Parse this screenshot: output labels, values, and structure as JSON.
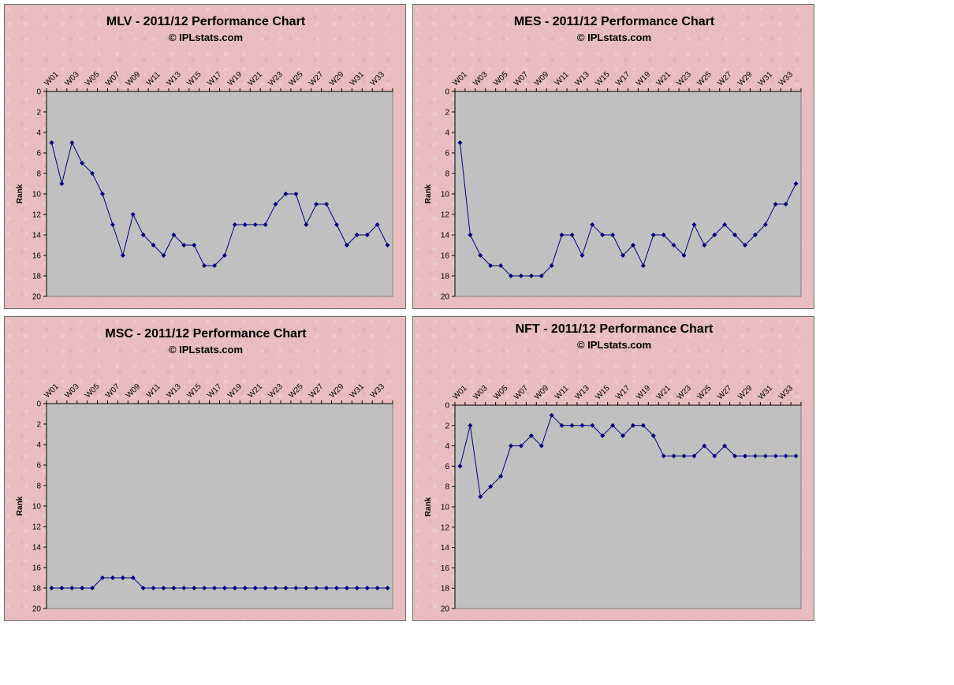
{
  "chart_data": [
    {
      "type": "line",
      "title": "MLV - 2011/12 Performance Chart",
      "subtitle": "© IPLstats.com",
      "ylabel": "Rank",
      "xlabel": "",
      "ylim": [
        0,
        20
      ],
      "y_inverted": true,
      "yticks": [
        "0",
        "2",
        "4",
        "6",
        "8",
        "10",
        "12",
        "14",
        "16",
        "18",
        "20"
      ],
      "x_tick_labels": [
        "W01",
        "W03",
        "W05",
        "W07",
        "W09",
        "W11",
        "W13",
        "W15",
        "W17",
        "W19",
        "W21",
        "W23",
        "W25",
        "W27",
        "W29",
        "W31",
        "W33"
      ],
      "x": [
        "W01",
        "W02",
        "W03",
        "W04",
        "W05",
        "W06",
        "W07",
        "W08",
        "W09",
        "W10",
        "W11",
        "W12",
        "W13",
        "W14",
        "W15",
        "W16",
        "W17",
        "W18",
        "W19",
        "W20",
        "W21",
        "W22",
        "W23",
        "W24",
        "W25",
        "W26",
        "W27",
        "W28",
        "W29",
        "W30",
        "W31",
        "W32",
        "W33",
        "W34"
      ],
      "values": [
        5,
        9,
        5,
        7,
        8,
        10,
        13,
        16,
        12,
        14,
        15,
        16,
        14,
        15,
        15,
        17,
        17,
        16,
        13,
        13,
        13,
        13,
        11,
        10,
        10,
        13,
        11,
        11,
        13,
        15,
        14,
        14,
        13,
        15
      ],
      "line_color": "#000080",
      "plot_background": "#c0c0c0",
      "grid": false
    },
    {
      "type": "line",
      "title": "MES - 2011/12 Performance Chart",
      "subtitle": "© IPLstats.com",
      "ylabel": "Rank",
      "xlabel": "",
      "ylim": [
        0,
        20
      ],
      "y_inverted": true,
      "yticks": [
        "0",
        "2",
        "4",
        "6",
        "8",
        "10",
        "12",
        "14",
        "16",
        "18",
        "20"
      ],
      "x_tick_labels": [
        "W01",
        "W03",
        "W05",
        "W07",
        "W09",
        "W11",
        "W13",
        "W15",
        "W17",
        "W19",
        "W21",
        "W23",
        "W25",
        "W27",
        "W29",
        "W31",
        "W33"
      ],
      "x": [
        "W01",
        "W02",
        "W03",
        "W04",
        "W05",
        "W06",
        "W07",
        "W08",
        "W09",
        "W10",
        "W11",
        "W12",
        "W13",
        "W14",
        "W15",
        "W16",
        "W17",
        "W18",
        "W19",
        "W20",
        "W21",
        "W22",
        "W23",
        "W24",
        "W25",
        "W26",
        "W27",
        "W28",
        "W29",
        "W30",
        "W31",
        "W32",
        "W33",
        "W34"
      ],
      "values": [
        5,
        14,
        16,
        17,
        17,
        18,
        18,
        18,
        18,
        17,
        14,
        14,
        16,
        13,
        14,
        14,
        16,
        15,
        17,
        14,
        14,
        15,
        16,
        13,
        15,
        14,
        13,
        14,
        15,
        14,
        13,
        11,
        11,
        9
      ],
      "line_color": "#000080",
      "plot_background": "#c0c0c0",
      "grid": false
    },
    {
      "type": "line",
      "title": "MSC - 2011/12 Performance Chart",
      "subtitle": "© IPLstats.com",
      "ylabel": "Rank",
      "xlabel": "",
      "ylim": [
        0,
        20
      ],
      "y_inverted": true,
      "yticks": [
        "0",
        "2",
        "4",
        "6",
        "8",
        "10",
        "12",
        "14",
        "16",
        "18",
        "20"
      ],
      "x_tick_labels": [
        "W01",
        "W03",
        "W05",
        "W07",
        "W09",
        "W11",
        "W13",
        "W15",
        "W17",
        "W19",
        "W21",
        "W23",
        "W25",
        "W27",
        "W29",
        "W31",
        "W33"
      ],
      "x": [
        "W01",
        "W02",
        "W03",
        "W04",
        "W05",
        "W06",
        "W07",
        "W08",
        "W09",
        "W10",
        "W11",
        "W12",
        "W13",
        "W14",
        "W15",
        "W16",
        "W17",
        "W18",
        "W19",
        "W20",
        "W21",
        "W22",
        "W23",
        "W24",
        "W25",
        "W26",
        "W27",
        "W28",
        "W29",
        "W30",
        "W31",
        "W32",
        "W33",
        "W34"
      ],
      "values": [
        18,
        18,
        18,
        18,
        18,
        17,
        17,
        17,
        17,
        18,
        18,
        18,
        18,
        18,
        18,
        18,
        18,
        18,
        18,
        18,
        18,
        18,
        18,
        18,
        18,
        18,
        18,
        18,
        18,
        18,
        18,
        18,
        18,
        18
      ],
      "line_color": "#000080",
      "plot_background": "#c0c0c0",
      "grid": false
    },
    {
      "type": "line",
      "title": "NFT - 2011/12 Performance Chart",
      "subtitle": "© IPLstats.com",
      "ylabel": "Rank",
      "xlabel": "",
      "ylim": [
        0,
        20
      ],
      "y_inverted": true,
      "yticks": [
        "0",
        "2",
        "4",
        "6",
        "8",
        "10",
        "12",
        "14",
        "16",
        "18",
        "20"
      ],
      "x_tick_labels": [
        "W01",
        "W03",
        "W05",
        "W07",
        "W09",
        "W11",
        "W13",
        "W15",
        "W17",
        "W19",
        "W21",
        "W23",
        "W25",
        "W27",
        "W29",
        "W31",
        "W33"
      ],
      "x": [
        "W01",
        "W02",
        "W03",
        "W04",
        "W05",
        "W06",
        "W07",
        "W08",
        "W09",
        "W10",
        "W11",
        "W12",
        "W13",
        "W14",
        "W15",
        "W16",
        "W17",
        "W18",
        "W19",
        "W20",
        "W21",
        "W22",
        "W23",
        "W24",
        "W25",
        "W26",
        "W27",
        "W28",
        "W29",
        "W30",
        "W31",
        "W32",
        "W33",
        "W34"
      ],
      "values": [
        6,
        2,
        9,
        8,
        7,
        4,
        4,
        3,
        4,
        1,
        2,
        2,
        2,
        2,
        3,
        2,
        3,
        2,
        2,
        3,
        5,
        5,
        5,
        5,
        4,
        5,
        4,
        5,
        5,
        5,
        5,
        5,
        5,
        5
      ],
      "line_color": "#000080",
      "plot_background": "#c0c0c0",
      "grid": false
    }
  ]
}
